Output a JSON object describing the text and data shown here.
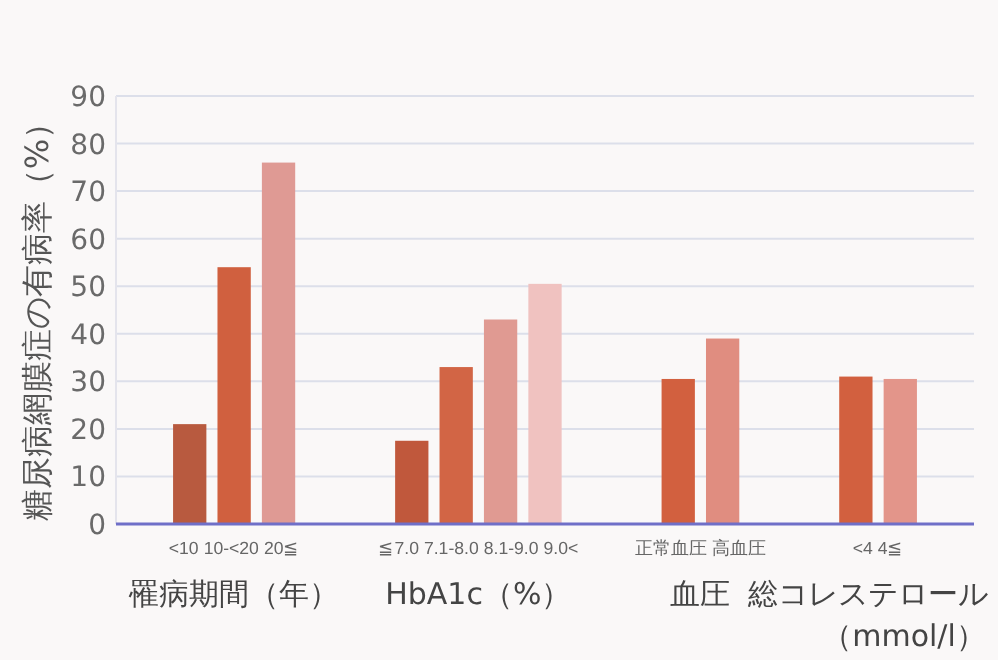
{
  "chart_data": {
    "type": "bar",
    "ylabel": "糖尿病網膜症の有病率（%）",
    "categories": [
      "<10",
      "10-<20",
      "20≦",
      null,
      null,
      "≦7.0",
      "7.1-8.0",
      "8.1-9.0",
      "9.0<",
      null,
      null,
      "正常血圧",
      "高血圧",
      null,
      null,
      "<4",
      "4≦"
    ],
    "values": [
      21,
      54,
      76,
      null,
      null,
      17.5,
      33,
      43,
      50.5,
      null,
      null,
      30.5,
      39,
      null,
      null,
      31,
      30.5
    ],
    "colors": [
      "#b85a3f",
      "#d0603f",
      "#df9a94",
      null,
      null,
      "#c0583c",
      "#d26545",
      "#e09a92",
      "#f0c2c0",
      null,
      null,
      "#d2603f",
      "#e08d80",
      null,
      null,
      "#d2603f",
      "#e3958a"
    ],
    "ylim": [
      0,
      90
    ],
    "yticks": [
      0,
      10,
      20,
      30,
      40,
      50,
      60,
      70,
      80,
      90
    ],
    "grid": "y",
    "annotations": [
      "罹病期間（年）",
      "HbA1c（%）",
      "血圧",
      "総コレステロール（mmol/l）"
    ]
  }
}
